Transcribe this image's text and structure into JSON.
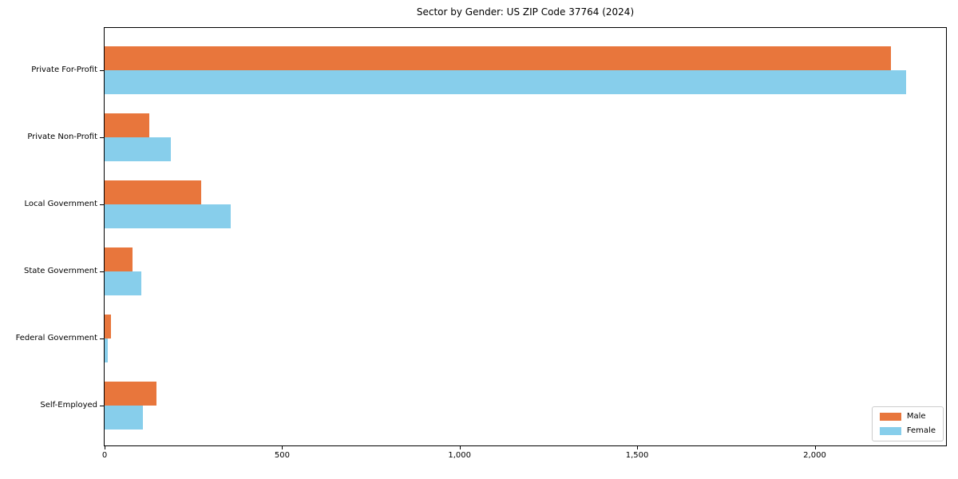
{
  "chart_data": {
    "type": "bar",
    "orientation": "horizontal",
    "title": "Sector by Gender: US ZIP Code 37764 (2024)",
    "categories": [
      "Private For-Profit",
      "Private Non-Profit",
      "Local Government",
      "State Government",
      "Federal Government",
      "Self-Employed"
    ],
    "series": [
      {
        "name": "Male",
        "color": "#e8763c",
        "values": [
          2215,
          125,
          273,
          78,
          18,
          146
        ]
      },
      {
        "name": "Female",
        "color": "#87ceeb",
        "values": [
          2258,
          186,
          355,
          103,
          10,
          107
        ]
      }
    ],
    "xlim": [
      0,
      2370
    ],
    "x_ticks": [
      0,
      500,
      1000,
      1500,
      2000
    ],
    "x_tick_labels": [
      "0",
      "500",
      "1,000",
      "1,500",
      "2,000"
    ],
    "legend": {
      "position": "lower right",
      "entries": [
        "Male",
        "Female"
      ]
    },
    "grid": false,
    "axis_color": "#000000",
    "legend_border_color": "#cccccc",
    "background_color": "#ffffff"
  }
}
